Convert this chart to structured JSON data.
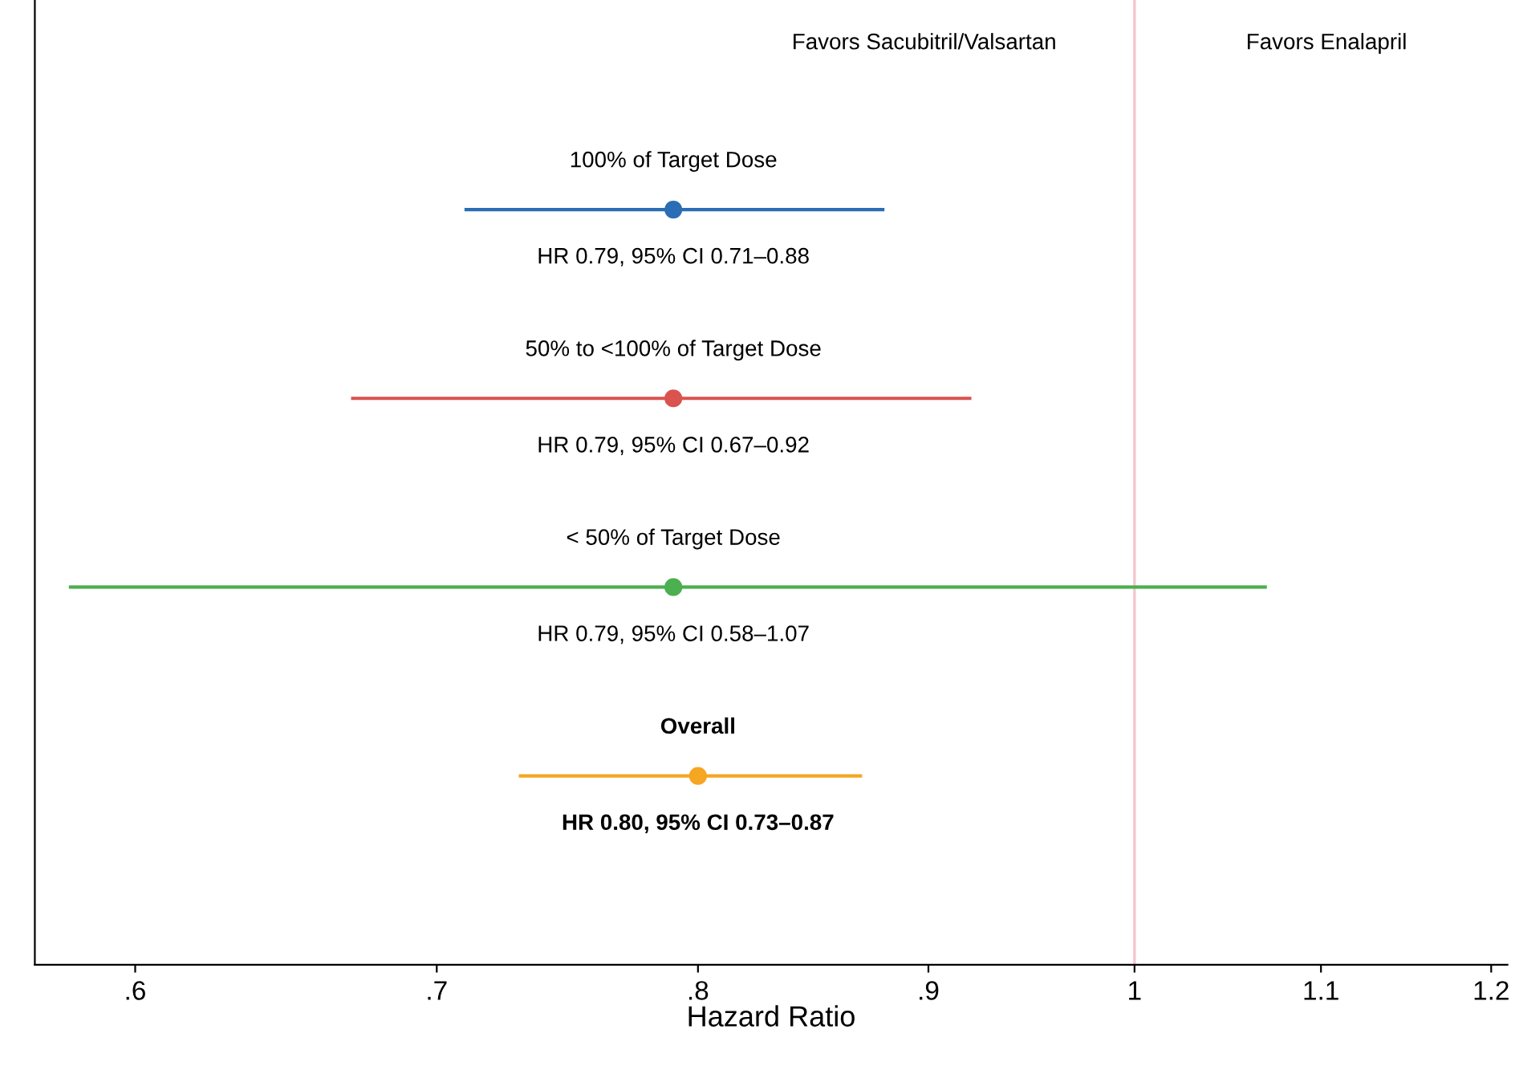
{
  "chart_data": {
    "type": "scatter",
    "orientation": "horizontal",
    "log": "x",
    "xlabel": "Hazard Ratio",
    "categories": [
      null,
      null,
      null,
      null
    ],
    "series": [
      {
        "name": "100% of Target Dose",
        "color": "#2a6db5",
        "values": [
          0.79,
          null,
          null,
          null
        ],
        "errors": [
          [
            0.71,
            0.88
          ],
          null,
          null,
          null
        ],
        "value_labels": [
          "HR 0.79, 95% CI 0.71–0.88",
          null,
          null,
          null
        ]
      },
      {
        "name": "50% to <100% of Target Dose",
        "color": "#d9534f",
        "values": [
          null,
          0.79,
          null,
          null
        ],
        "errors": [
          null,
          [
            0.67,
            0.92
          ],
          null,
          null
        ],
        "value_labels": [
          null,
          "HR 0.79, 95% CI 0.67–0.92",
          null,
          null
        ]
      },
      {
        "name": "< 50% of Target Dose",
        "color": "#4caf50",
        "values": [
          null,
          null,
          0.79,
          null
        ],
        "errors": [
          null,
          null,
          [
            0.58,
            1.07
          ],
          null
        ],
        "value_labels": [
          null,
          null,
          "HR 0.79, 95% CI 0.58–1.07",
          null
        ]
      },
      {
        "name": "Overall",
        "color": "#f5a623",
        "values": [
          null,
          null,
          null,
          0.8
        ],
        "errors": [
          null,
          null,
          null,
          [
            0.73,
            0.87
          ]
        ],
        "value_labels": [
          null,
          null,
          null,
          "HR 0.80, 95% CI 0.73–0.87"
        ]
      }
    ],
    "xlim": [
      0.57,
      1.21
    ],
    "xticks": [
      {
        "value": 0.6,
        "label": ".6"
      },
      {
        "value": 0.7,
        "label": ".7"
      },
      {
        "value": 0.8,
        "label": ".8"
      },
      {
        "value": 0.9,
        "label": ".9"
      },
      1,
      1.1,
      1.2
    ],
    "ref_lines": [
      {
        "axis": "x",
        "value": 1,
        "color": "#f4c6cc"
      }
    ],
    "annotations": [
      "Favors Sacubitril/Valsartan",
      "Favors Enalapril"
    ],
    "marker": "circle",
    "grid": false,
    "legend": false,
    "tick_labels": "x"
  }
}
